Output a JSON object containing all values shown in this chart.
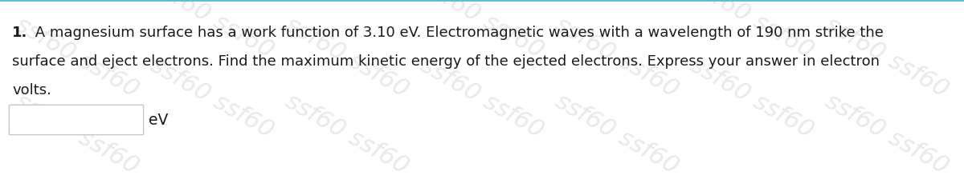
{
  "line1_bold": "1.",
  "line1_rest": " A magnesium surface has a work function of 3.10 eV. Electromagnetic waves with a wavelength of 190 nm strike the",
  "line2": "surface and eject electrons. Find the maximum kinetic energy of the ejected electrons. Express your answer in electron",
  "line3": "volts.",
  "unit_label": "eV",
  "background_color": "#ffffff",
  "text_color": "#1a1a1a",
  "font_size": 13.0,
  "border_color": "#c8c8c8",
  "top_border_color": "#5bbcd0",
  "watermark_color": "#d8d8d8",
  "watermark_text": "ssf60 ssf60",
  "watermark_alpha": 0.55,
  "watermark_fontsize": 22,
  "watermark_rotation": -30
}
